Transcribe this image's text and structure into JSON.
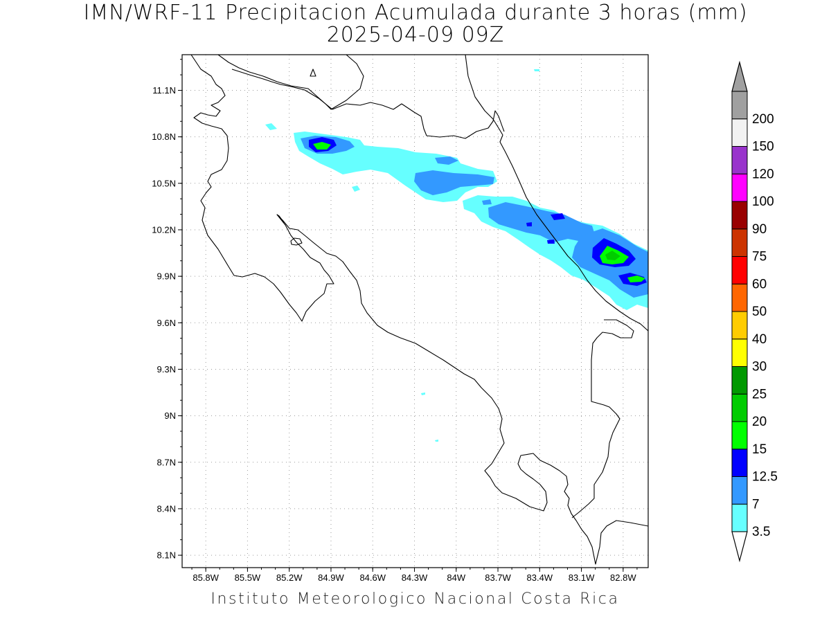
{
  "title_line1": "IMN/WRF-11 Precipitacion Acumulada durante 3 horas (mm)",
  "title_line2": "2025-04-09 09Z",
  "footer": "Instituto Meteorologico Nacional Costa Rica",
  "map": {
    "lat_labels": [
      "11.1N",
      "10.8N",
      "10.5N",
      "10.2N",
      "9.9N",
      "9.6N",
      "9.3N",
      "9N",
      "8.7N",
      "8.4N",
      "8.1N"
    ],
    "lon_labels": [
      "85.8W",
      "85.5W",
      "85.2W",
      "84.9W",
      "84.6W",
      "84.3W",
      "84W",
      "83.7W",
      "83.4W",
      "83.1W",
      "82.8W"
    ],
    "extent": {
      "lon_min": -85.97,
      "lon_max": -82.62,
      "lat_min": 8.02,
      "lat_max": 11.33
    }
  },
  "colorbar": {
    "levels": [
      "3.5",
      "7",
      "12.5",
      "15",
      "20",
      "25",
      "30",
      "40",
      "50",
      "60",
      "75",
      "90",
      "100",
      "120",
      "150",
      "200"
    ],
    "colors": [
      "#66ffff",
      "#3399ff",
      "#0000ff",
      "#00ff00",
      "#00cc00",
      "#009900",
      "#ffff00",
      "#ffcc00",
      "#ff6600",
      "#ff0000",
      "#cc3300",
      "#990000",
      "#ff00ff",
      "#9933cc",
      "#f2f2f2",
      "#a0a0a0"
    ],
    "low_arrow": "#ffffff",
    "high_arrow": "#a0a0a0"
  },
  "colors": {
    "cyan": "#66ffff",
    "light_blue": "#3399ff",
    "blue": "#0000ff",
    "green": "#00ff00",
    "mid_green": "#00cc00",
    "dark_green": "#009900"
  }
}
